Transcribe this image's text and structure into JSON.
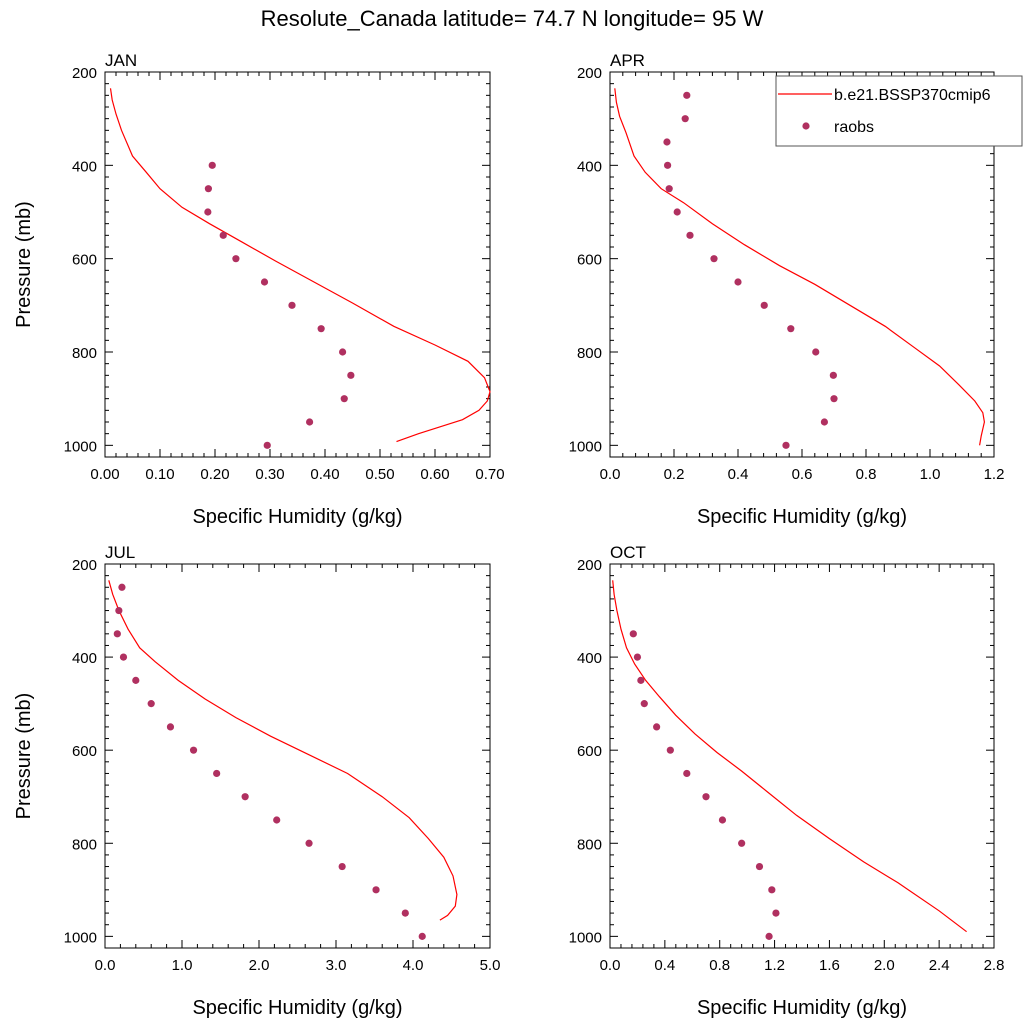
{
  "figure": {
    "title": "Resolute_Canada  latitude= 74.7 N longitude= 95 W"
  },
  "legend": {
    "model_label": "b.e21.BSSP370cmip6",
    "obs_label": "raobs"
  },
  "colors": {
    "model_line": "#ff0000",
    "obs_marker": "#b03060",
    "axes": "#000000"
  },
  "chart_data": [
    {
      "type": "line",
      "panel": "JAN",
      "xlabel": "Specific Humidity (g/kg)",
      "ylabel": "Pressure (mb)",
      "xlim": [
        0,
        0.7
      ],
      "ylim": [
        200,
        1025
      ],
      "y_reversed": true,
      "xticks": [
        0,
        0.1,
        0.2,
        0.3,
        0.4,
        0.5,
        0.6,
        0.7
      ],
      "xtick_labels": [
        "0.00",
        "0.10",
        "0.20",
        "0.30",
        "0.40",
        "0.50",
        "0.60",
        "0.70"
      ],
      "yticks": [
        200,
        400,
        600,
        800,
        1000
      ],
      "ytick_labels": [
        "200",
        "400",
        "600",
        "800",
        "1000"
      ],
      "series": [
        {
          "name": "b.e21.BSSP370cmip6",
          "kind": "line",
          "x": [
            0.01,
            0.013,
            0.02,
            0.03,
            0.05,
            0.075,
            0.1,
            0.14,
            0.19,
            0.25,
            0.31,
            0.38,
            0.45,
            0.525,
            0.6,
            0.66,
            0.69,
            0.7,
            0.695,
            0.68,
            0.65,
            0.61,
            0.57,
            0.53
          ],
          "y": [
            235,
            260,
            290,
            325,
            380,
            415,
            450,
            490,
            525,
            565,
            605,
            650,
            695,
            745,
            785,
            820,
            855,
            885,
            905,
            925,
            945,
            960,
            975,
            992
          ]
        },
        {
          "name": "raobs",
          "kind": "scatter",
          "x": [
            0.195,
            0.188,
            0.187,
            0.215,
            0.238,
            0.29,
            0.34,
            0.393,
            0.432,
            0.447,
            0.435,
            0.372,
            0.295
          ],
          "y": [
            400,
            450,
            500,
            550,
            600,
            650,
            700,
            750,
            800,
            850,
            900,
            950,
            1000
          ]
        }
      ]
    },
    {
      "type": "line",
      "panel": "APR",
      "xlabel": "Specific Humidity (g/kg)",
      "ylabel": "",
      "xlim": [
        0,
        1.2
      ],
      "ylim": [
        200,
        1025
      ],
      "y_reversed": true,
      "xticks": [
        0,
        0.2,
        0.4,
        0.6,
        0.8,
        1.0,
        1.2
      ],
      "xtick_labels": [
        "0.0",
        "0.2",
        "0.4",
        "0.6",
        "0.8",
        "1.0",
        "1.2"
      ],
      "yticks": [
        200,
        400,
        600,
        800,
        1000
      ],
      "ytick_labels": [
        "200",
        "400",
        "600",
        "800",
        "1000"
      ],
      "series": [
        {
          "name": "b.e21.BSSP370cmip6",
          "kind": "line",
          "x": [
            0.015,
            0.02,
            0.03,
            0.05,
            0.075,
            0.11,
            0.16,
            0.23,
            0.32,
            0.42,
            0.53,
            0.64,
            0.75,
            0.86,
            0.95,
            1.03,
            1.09,
            1.14,
            1.165,
            1.17,
            1.165,
            1.16,
            1.155
          ],
          "y": [
            235,
            265,
            295,
            330,
            380,
            415,
            450,
            480,
            525,
            570,
            615,
            655,
            700,
            745,
            790,
            830,
            870,
            905,
            930,
            950,
            965,
            980,
            1000
          ]
        },
        {
          "name": "raobs",
          "kind": "scatter",
          "x": [
            0.24,
            0.235,
            0.178,
            0.18,
            0.185,
            0.21,
            0.25,
            0.325,
            0.4,
            0.482,
            0.565,
            0.643,
            0.698,
            0.7,
            0.67,
            0.55
          ],
          "y": [
            250,
            300,
            350,
            400,
            450,
            500,
            550,
            600,
            650,
            700,
            750,
            800,
            850,
            900,
            950,
            1000
          ]
        }
      ]
    },
    {
      "type": "line",
      "panel": "JUL",
      "xlabel": "Specific Humidity (g/kg)",
      "ylabel": "Pressure (mb)",
      "xlim": [
        0,
        5.0
      ],
      "ylim": [
        200,
        1025
      ],
      "y_reversed": true,
      "xticks": [
        0,
        1,
        2,
        3,
        4,
        5
      ],
      "xtick_labels": [
        "0.0",
        "1.0",
        "2.0",
        "3.0",
        "4.0",
        "5.0"
      ],
      "yticks": [
        200,
        400,
        600,
        800,
        1000
      ],
      "ytick_labels": [
        "200",
        "400",
        "600",
        "800",
        "1000"
      ],
      "series": [
        {
          "name": "b.e21.BSSP370cmip6",
          "kind": "line",
          "x": [
            0.05,
            0.1,
            0.18,
            0.3,
            0.45,
            0.65,
            0.95,
            1.3,
            1.7,
            2.15,
            2.65,
            3.15,
            3.6,
            3.95,
            4.2,
            4.4,
            4.52,
            4.57,
            4.55,
            4.45,
            4.35
          ],
          "y": [
            235,
            265,
            300,
            340,
            380,
            410,
            450,
            490,
            530,
            570,
            610,
            650,
            700,
            745,
            790,
            830,
            870,
            910,
            935,
            955,
            965
          ]
        },
        {
          "name": "raobs",
          "kind": "scatter",
          "x": [
            0.22,
            0.18,
            0.16,
            0.24,
            0.4,
            0.6,
            0.85,
            1.15,
            1.45,
            1.82,
            2.23,
            2.65,
            3.08,
            3.52,
            3.9,
            4.12
          ],
          "y": [
            250,
            300,
            350,
            400,
            450,
            500,
            550,
            600,
            650,
            700,
            750,
            800,
            850,
            900,
            950,
            1000
          ]
        }
      ]
    },
    {
      "type": "line",
      "panel": "OCT",
      "xlabel": "Specific Humidity (g/kg)",
      "ylabel": "",
      "xlim": [
        0,
        2.8
      ],
      "ylim": [
        200,
        1025
      ],
      "y_reversed": true,
      "xticks": [
        0,
        0.4,
        0.8,
        1.2,
        1.6,
        2.0,
        2.4,
        2.8
      ],
      "xtick_labels": [
        "0.0",
        "0.4",
        "0.8",
        "1.2",
        "1.6",
        "2.0",
        "2.4",
        "2.8"
      ],
      "yticks": [
        200,
        400,
        600,
        800,
        1000
      ],
      "ytick_labels": [
        "200",
        "400",
        "600",
        "800",
        "1000"
      ],
      "series": [
        {
          "name": "b.e21.BSSP370cmip6",
          "kind": "line",
          "x": [
            0.02,
            0.03,
            0.05,
            0.08,
            0.12,
            0.18,
            0.26,
            0.36,
            0.48,
            0.62,
            0.78,
            0.96,
            1.15,
            1.36,
            1.6,
            1.85,
            2.1,
            2.4,
            2.6
          ],
          "y": [
            235,
            265,
            300,
            340,
            380,
            415,
            450,
            485,
            525,
            565,
            605,
            645,
            690,
            740,
            790,
            840,
            885,
            945,
            990
          ]
        },
        {
          "name": "raobs",
          "kind": "scatter",
          "x": [
            0.17,
            0.2,
            0.225,
            0.25,
            0.34,
            0.44,
            0.56,
            0.7,
            0.82,
            0.96,
            1.09,
            1.18,
            1.21,
            1.16
          ],
          "y": [
            350,
            400,
            450,
            500,
            550,
            600,
            650,
            700,
            750,
            800,
            850,
            900,
            950,
            1000
          ]
        }
      ]
    }
  ]
}
